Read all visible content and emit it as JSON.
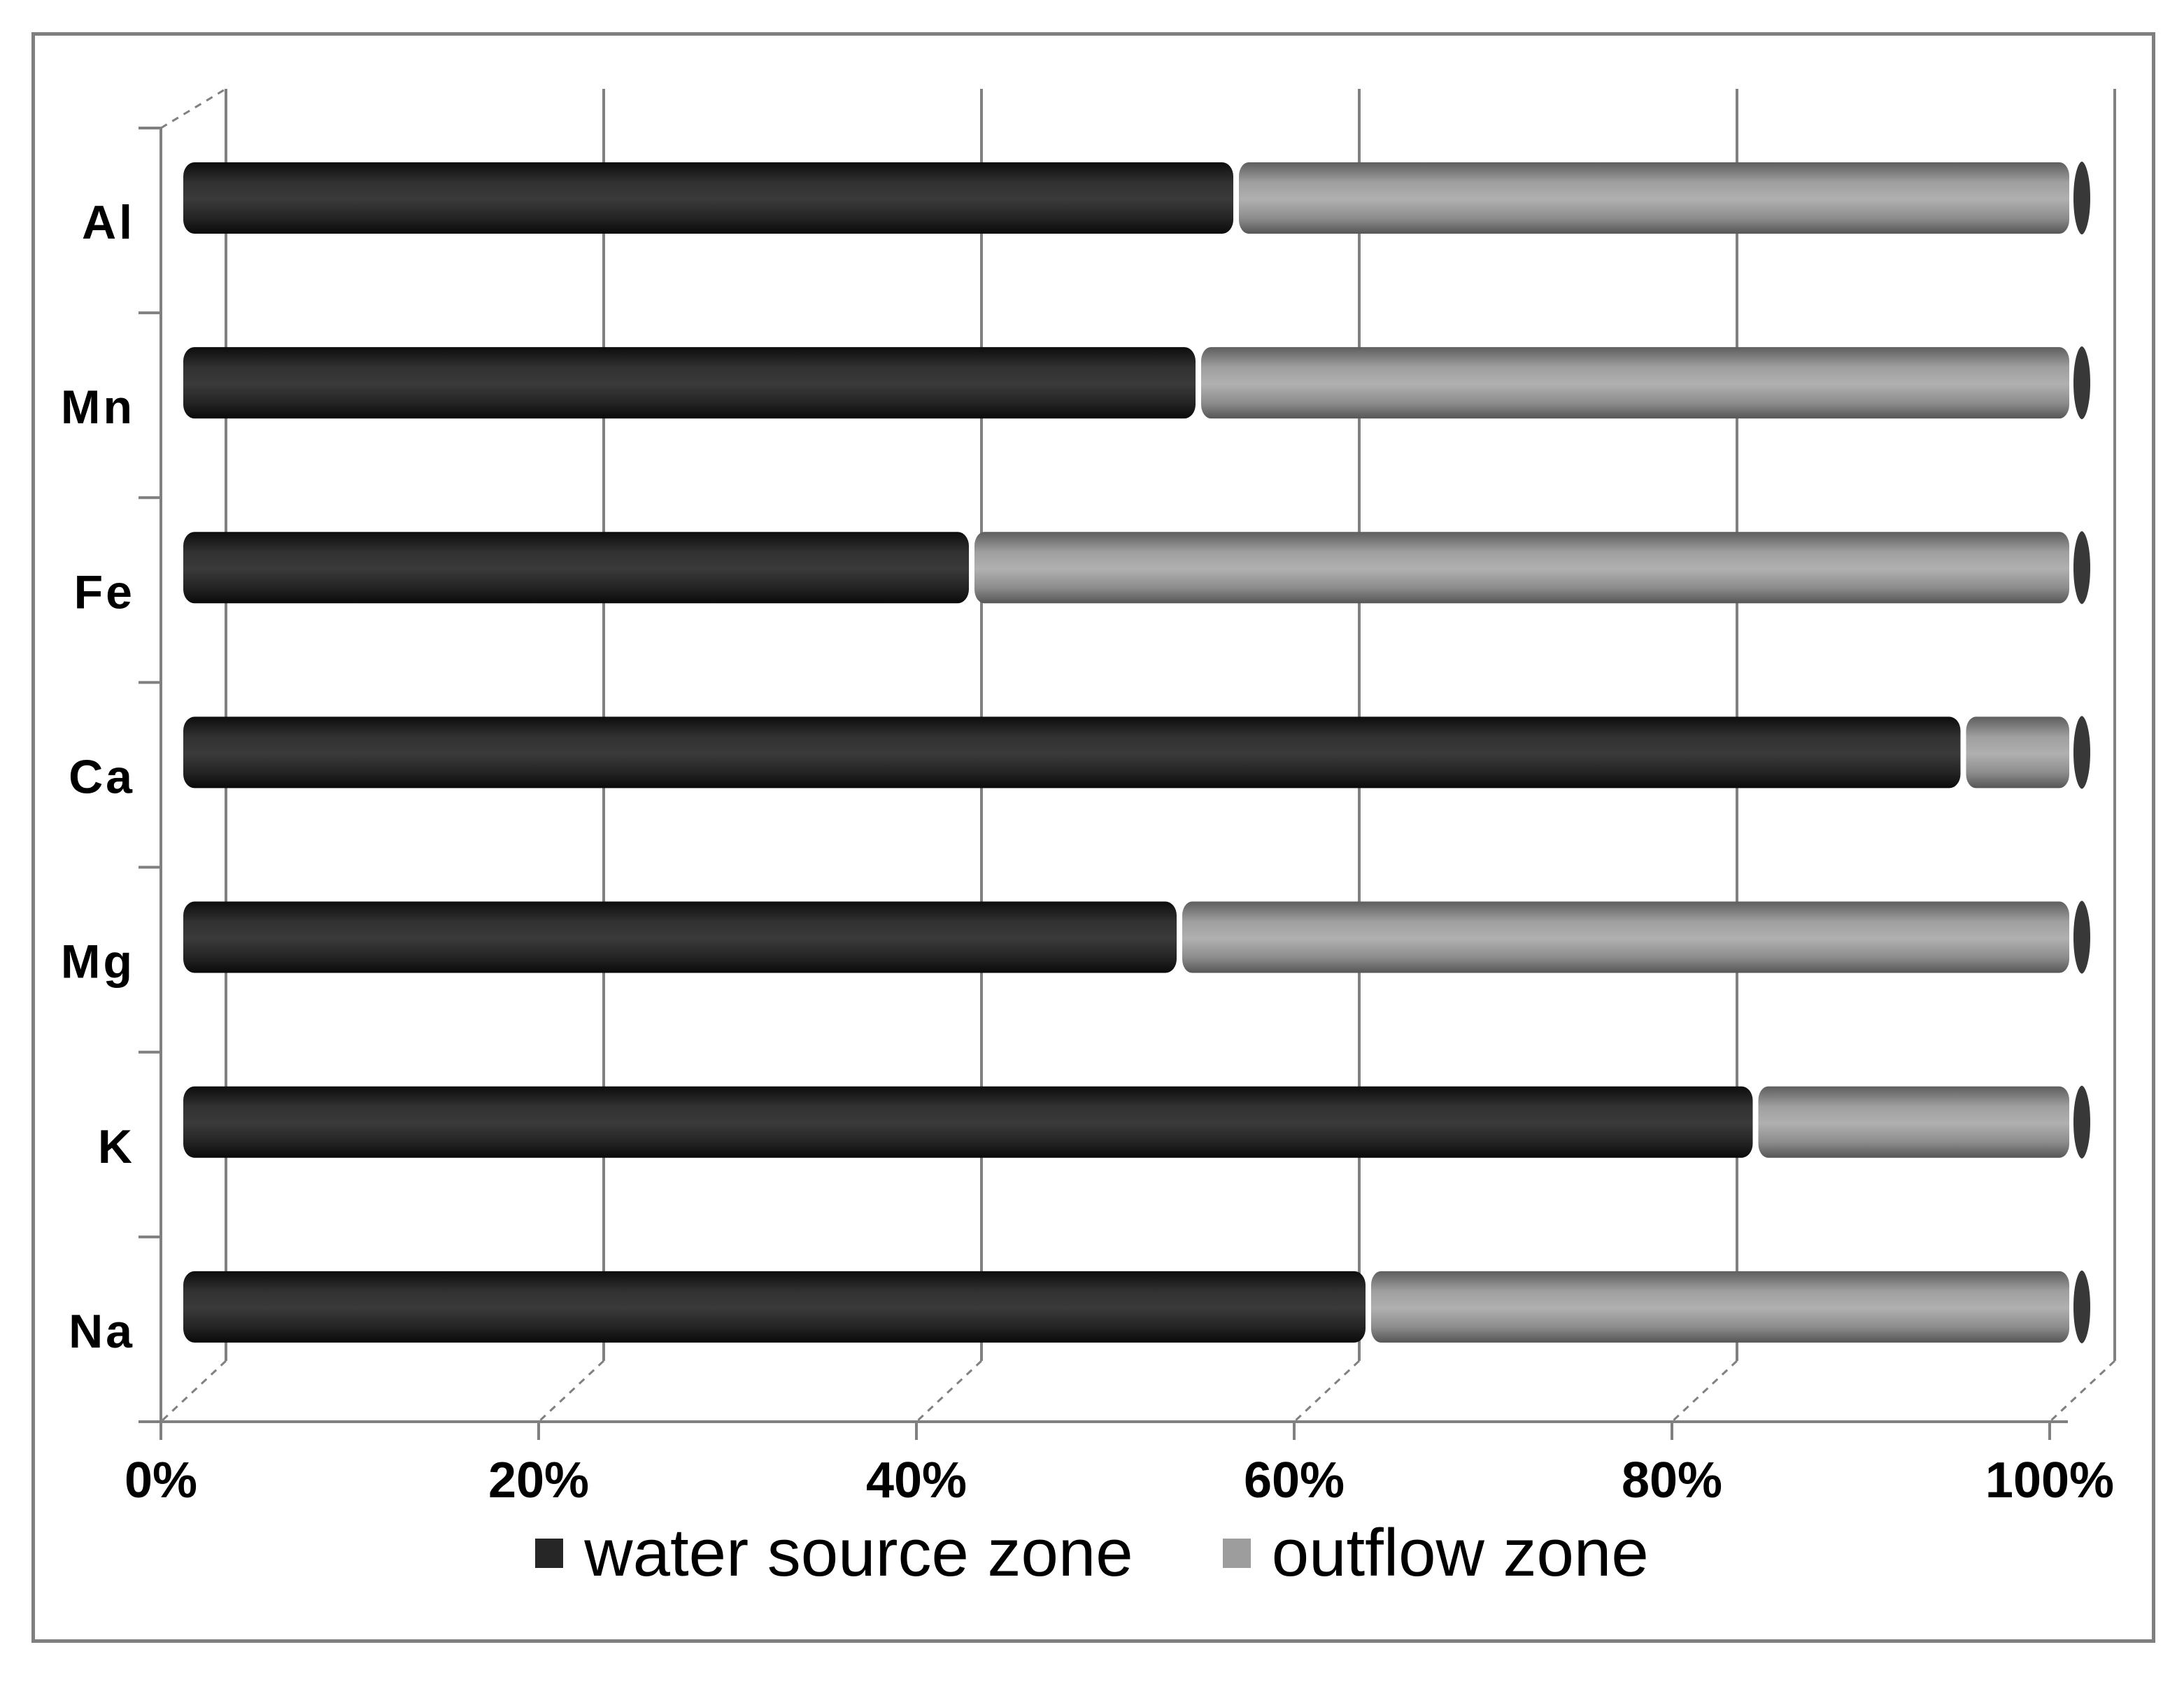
{
  "figure": {
    "background_color": "#ffffff",
    "frame_border_color": "#7f7f7f",
    "axis_line_color": "#808080",
    "gridline_color": "#808080",
    "text_color": "#000000"
  },
  "chart_data": {
    "type": "bar",
    "orientation": "horizontal",
    "stacked": true,
    "stacked_to_percent": true,
    "style": "3d-cylinder",
    "title": "",
    "xlabel": "",
    "ylabel": "",
    "categories": [
      "Al",
      "Mn",
      "Fe",
      "Ca",
      "Mg",
      "K",
      "Na"
    ],
    "series": [
      {
        "name": "water source zone",
        "color": "#262626",
        "values": [
          55,
          53,
          41,
          93.5,
          52,
          82.5,
          62
        ]
      },
      {
        "name": "outflow zone",
        "color": "#9d9d9d",
        "values": [
          45,
          47,
          59,
          6.5,
          48,
          17.5,
          38
        ]
      }
    ],
    "x_axis": {
      "min": 0,
      "max": 100,
      "tick_values": [
        0,
        20,
        40,
        60,
        80,
        100
      ],
      "tick_labels": [
        "0%",
        "20%",
        "40%",
        "60%",
        "80%",
        "100%"
      ]
    },
    "grid": true,
    "legend_position": "bottom",
    "bar_end_cap_color": "#383838"
  }
}
